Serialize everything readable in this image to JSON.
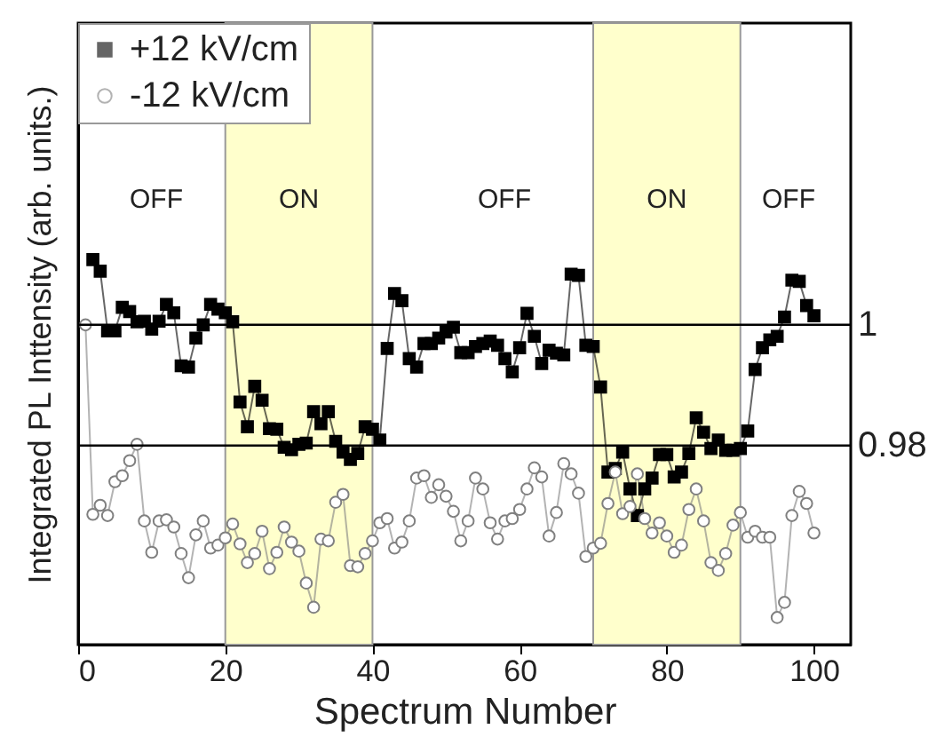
{
  "chart_data": {
    "type": "line",
    "xlabel": "Spectrum Number",
    "ylabel": "Integrated PL Inttensity (arb. units.)",
    "x": [
      1,
      2,
      3,
      4,
      5,
      6,
      7,
      8,
      9,
      10,
      11,
      12,
      13,
      14,
      15,
      16,
      17,
      18,
      19,
      20,
      21,
      22,
      23,
      24,
      25,
      26,
      27,
      28,
      29,
      30,
      31,
      32,
      33,
      34,
      35,
      36,
      37,
      38,
      39,
      40,
      41,
      42,
      43,
      44,
      45,
      46,
      47,
      48,
      49,
      50,
      51,
      52,
      53,
      54,
      55,
      56,
      57,
      58,
      59,
      60,
      61,
      62,
      63,
      64,
      65,
      66,
      67,
      68,
      69,
      70,
      71,
      72,
      73,
      74,
      75,
      76,
      77,
      78,
      79,
      80,
      81,
      82,
      83,
      84,
      85,
      86,
      87,
      88,
      89,
      90,
      91,
      92,
      93,
      94,
      95,
      96,
      97,
      98,
      99,
      100
    ],
    "series": [
      {
        "name": "+12 kV/cm",
        "color": "#000000",
        "marker": "square",
        "values": [
          null,
          1.0108,
          1.0089,
          0.999,
          0.999,
          1.0029,
          1.0022,
          1.0005,
          1.0006,
          0.9993,
          1.0006,
          1.0034,
          1.002,
          0.9932,
          0.993,
          0.9978,
          1.0,
          1.0034,
          1.0026,
          1.002,
          1.0005,
          0.9872,
          0.9831,
          0.9898,
          0.9875,
          0.9828,
          0.9827,
          0.9797,
          0.9793,
          0.9802,
          0.9804,
          0.9856,
          0.9836,
          0.9856,
          0.9807,
          0.9789,
          0.9777,
          0.9787,
          0.9831,
          0.9827,
          0.9809,
          0.9961,
          1.0052,
          1.004,
          0.9944,
          0.993,
          0.9969,
          0.9969,
          0.9978,
          0.9988,
          0.9996,
          0.9954,
          0.9954,
          0.9964,
          0.9969,
          0.9973,
          0.9966,
          0.9944,
          0.9922,
          0.9962,
          1.0019,
          0.9981,
          0.9936,
          0.9958,
          0.9953,
          0.995,
          1.0084,
          1.0082,
          0.9966,
          0.9964,
          0.9897,
          0.9756,
          0.9762,
          0.9789,
          0.9728,
          0.9684,
          0.9728,
          0.9746,
          0.9785,
          0.9785,
          0.9748,
          0.9756,
          0.9787,
          0.9846,
          0.9822,
          0.9795,
          0.9809,
          0.9792,
          0.9792,
          0.9795,
          0.9824,
          0.9926,
          0.9962,
          0.9975,
          0.9981,
          1.0013,
          1.0074,
          1.0072,
          1.0032,
          1.0015
        ]
      },
      {
        "name": "-12 kV/cm",
        "color": "#808080",
        "marker": "circle",
        "values": [
          1.0,
          0.9686,
          0.9701,
          0.9684,
          0.974,
          0.975,
          0.9775,
          0.9802,
          0.9675,
          0.9623,
          0.9675,
          0.9677,
          0.9665,
          0.9621,
          0.9581,
          0.9652,
          0.9675,
          0.963,
          0.9635,
          0.9647,
          0.967,
          0.9637,
          0.9606,
          0.9621,
          0.9658,
          0.9596,
          0.9623,
          0.9665,
          0.964,
          0.9625,
          0.9572,
          0.9532,
          0.9645,
          0.9642,
          0.9706,
          0.9719,
          0.9601,
          0.9599,
          0.9621,
          0.9642,
          0.9672,
          0.9679,
          0.963,
          0.964,
          0.9675,
          0.9746,
          0.975,
          0.9714,
          0.9735,
          0.9716,
          0.9691,
          0.9642,
          0.9675,
          0.9746,
          0.9728,
          0.9672,
          0.9645,
          0.9675,
          0.9679,
          0.9694,
          0.9728,
          0.9763,
          0.9748,
          0.965,
          0.9689,
          0.977,
          0.9753,
          0.9721,
          0.9616,
          0.963,
          0.9638,
          0.9704,
          0.9756,
          0.9687,
          0.9699,
          0.9753,
          0.9679,
          0.9655,
          0.9672,
          0.965,
          0.9623,
          0.9635,
          0.9694,
          0.9728,
          0.9675,
          0.9606,
          0.9593,
          0.9621,
          0.9668,
          0.9689,
          0.9648,
          0.9658,
          0.9648,
          0.9648,
          0.9515,
          0.954,
          0.9684,
          0.9724,
          0.9704,
          0.9655
        ]
      }
    ],
    "xlim": [
      0,
      105
    ],
    "xticks": [
      0,
      20,
      40,
      60,
      80,
      100
    ],
    "ylim": [
      0.947,
      1.05
    ],
    "tick_labels": "x",
    "ref_lines": [
      {
        "axis": "y",
        "value": 1,
        "label": "1",
        "color": "#000000"
      },
      {
        "axis": "y",
        "value": 0.98,
        "label": "0.98",
        "color": "#000000"
      }
    ],
    "bands": [
      {
        "axis": "x",
        "from": 20,
        "to": 40,
        "label": "ON",
        "color": "#ffffcc"
      },
      {
        "axis": "x",
        "from": 70,
        "to": 90,
        "label": "ON",
        "color": "#ffffcc"
      }
    ],
    "annotations": [
      "OFF",
      "OFF",
      "OFF"
    ],
    "legend": "top left",
    "grid": false
  }
}
